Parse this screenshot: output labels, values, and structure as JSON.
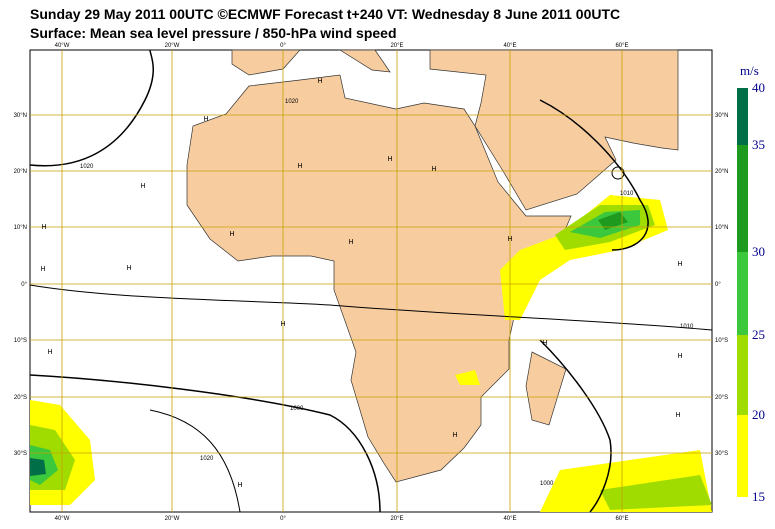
{
  "header": {
    "line1": "Sunday 29 May 2011 00UTC ©ECMWF Forecast t+240 VT: Wednesday 8 June 2011 00UTC",
    "line2": "Surface: Mean sea level pressure / 850-hPa wind speed"
  },
  "longitude_labels": [
    "40°W",
    "20°W",
    "0°",
    "20°E",
    "40°E",
    "60°E"
  ],
  "latitude_labels": [
    "30°N",
    "20°N",
    "10°N",
    "0°",
    "10°S",
    "20°S",
    "30°S"
  ],
  "colorbar": {
    "unit": "m/s",
    "ticks": [
      40,
      35,
      30,
      25,
      20,
      15
    ]
  },
  "pressure_labels": [
    "1020",
    "1020",
    "1010",
    "1000",
    "1020",
    "1000",
    "1010"
  ],
  "high_markers": [
    "H",
    "H",
    "H",
    "H",
    "H",
    "H",
    "H",
    "H",
    "H",
    "H",
    "H",
    "H",
    "H",
    "H",
    "H",
    "H",
    "H",
    "H",
    "H",
    "H"
  ]
}
